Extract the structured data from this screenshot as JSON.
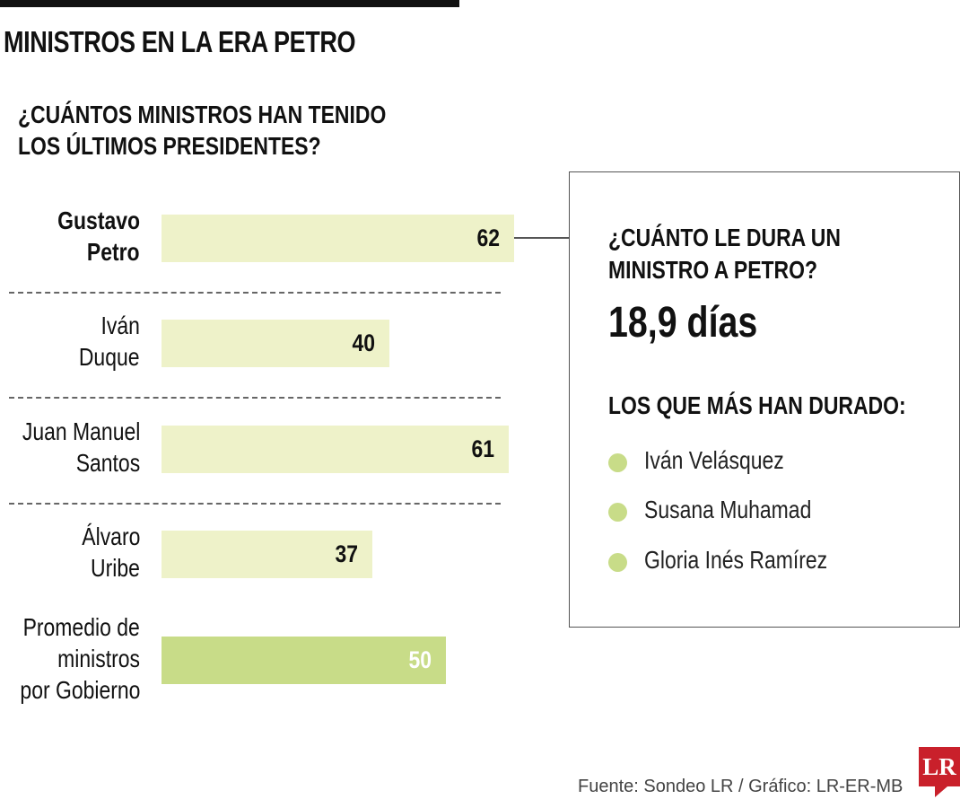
{
  "header": {
    "title": "MINISTROS EN LA ERA PETRO",
    "subtitle_line1": "¿CUÁNTOS MINISTROS HAN TENIDO",
    "subtitle_line2": "LOS ÚLTIMOS PRESIDENTES?"
  },
  "chart_data": {
    "type": "bar",
    "orientation": "horizontal",
    "title": "¿CUÁNTOS MINISTROS HAN TENIDO LOS ÚLTIMOS PRESIDENTES?",
    "categories": [
      [
        "Gustavo",
        "Petro"
      ],
      [
        "Iván",
        "Duque"
      ],
      [
        "Juan Manuel",
        "Santos"
      ],
      [
        "Álvaro",
        "Uribe"
      ],
      [
        "Promedio de",
        "ministros",
        "por Gobierno"
      ]
    ],
    "values": [
      62,
      40,
      61,
      37,
      50
    ],
    "value_labels": [
      "62",
      "40",
      "61",
      "37",
      "50"
    ],
    "highlight_index": 0,
    "bar_colors": [
      "#eef2c9",
      "#eef2c9",
      "#eef2c9",
      "#eef2c9",
      "#c8dc88"
    ],
    "value_label_colors": [
      "#111111",
      "#111111",
      "#111111",
      "#111111",
      "#ffffff"
    ],
    "grid": false
  },
  "info_box": {
    "question_line1": "¿CUÁNTO LE DURA UN",
    "question_line2": "MINISTRO A PETRO?",
    "answer": "18,9 días",
    "longest_heading": "LOS QUE MÁS HAN DURADO:",
    "longest": [
      "Iván Velásquez",
      "Susana Muhamad",
      "Gloria Inés Ramírez"
    ],
    "dot_color": "#c8dc88"
  },
  "footer": {
    "source": "Fuente: Sondeo LR / Gráfico: LR-ER-MB",
    "logo": "LR",
    "logo_color": "#c9202b"
  }
}
